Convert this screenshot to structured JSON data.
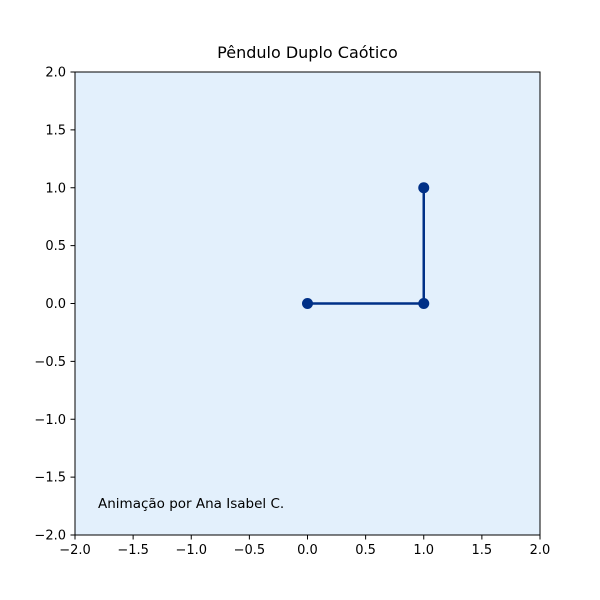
{
  "chart_data": {
    "type": "line",
    "title": "Pêndulo Duplo Caótico",
    "xlabel": "",
    "ylabel": "",
    "xlim": [
      -2.0,
      2.0
    ],
    "ylim": [
      -2.0,
      2.0
    ],
    "xticks": [
      -2.0,
      -1.5,
      -1.0,
      -0.5,
      0.0,
      0.5,
      1.0,
      1.5,
      2.0
    ],
    "xtick_labels": [
      "−2.0",
      "−1.5",
      "−1.0",
      "−0.5",
      "0.0",
      "0.5",
      "1.0",
      "1.5",
      "2.0"
    ],
    "yticks": [
      -2.0,
      -1.5,
      -1.0,
      -0.5,
      0.0,
      0.5,
      1.0,
      1.5,
      2.0
    ],
    "ytick_labels": [
      "−2.0",
      "−1.5",
      "−1.0",
      "−0.5",
      "0.0",
      "0.5",
      "1.0",
      "1.5",
      "2.0"
    ],
    "grid": false,
    "legend": false,
    "series": [
      {
        "x": [
          0.0,
          1.0,
          1.0
        ],
        "y": [
          0.0,
          0.0,
          1.0
        ],
        "color": "#003087",
        "marker": "circle"
      }
    ],
    "annotation": "Animação por Ana Isabel C.",
    "plot_background": "#e3f0fc"
  }
}
